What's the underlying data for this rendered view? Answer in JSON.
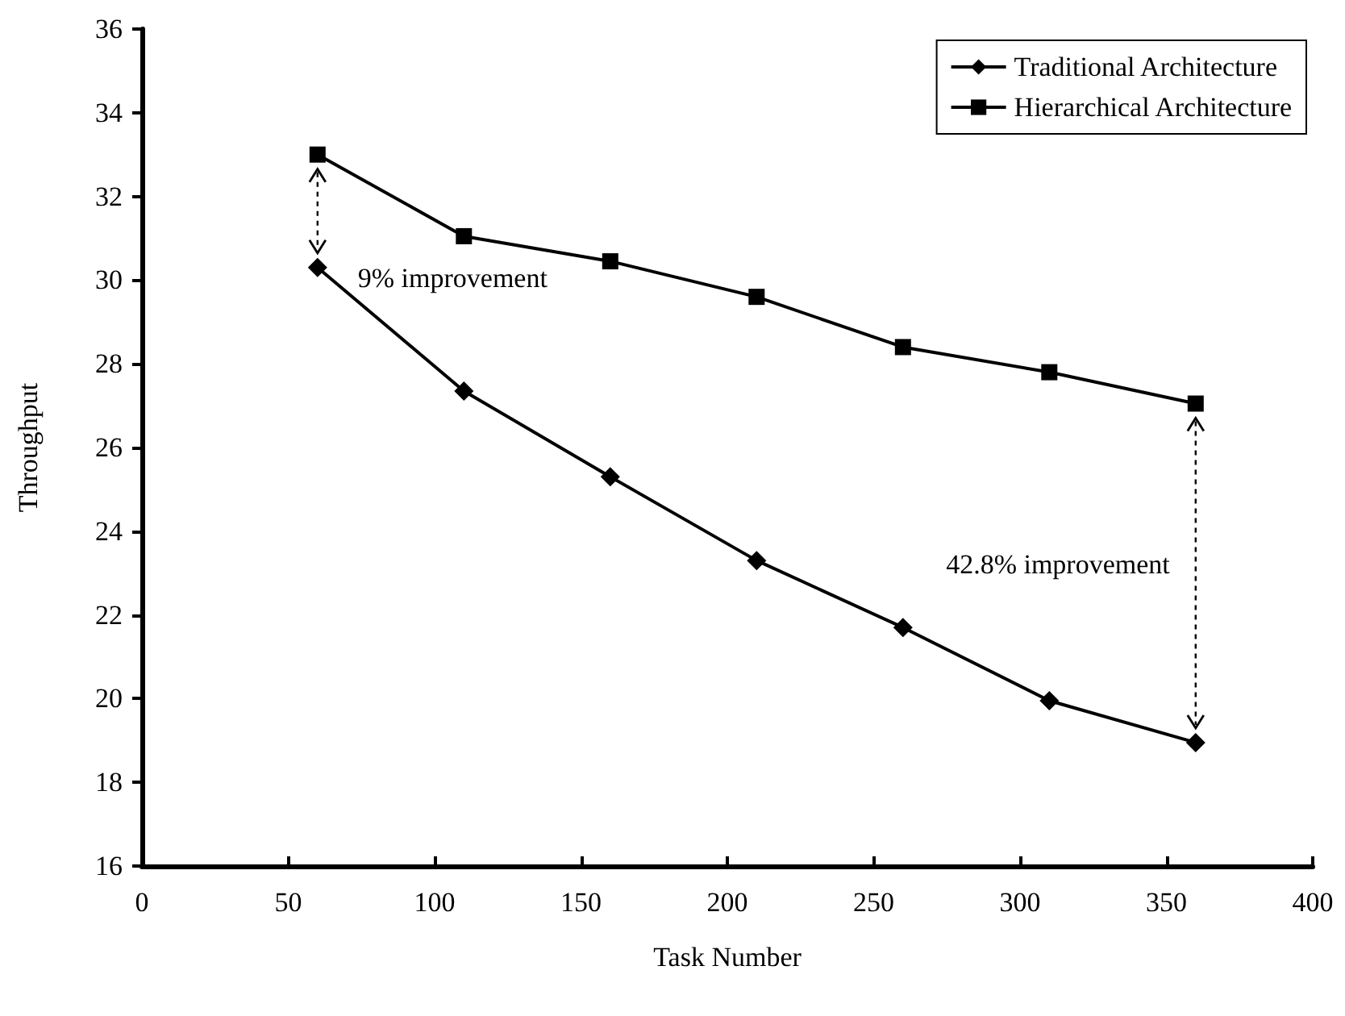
{
  "chart_data": {
    "type": "line",
    "xlabel": "Task Number",
    "ylabel": "Throughput",
    "x": [
      60,
      110,
      160,
      210,
      260,
      310,
      360
    ],
    "series": [
      {
        "name": "Traditional Architecture",
        "color": "#000000",
        "marker": "diamond",
        "values": [
          30.3,
          27.35,
          25.3,
          23.3,
          21.7,
          19.95,
          18.95
        ]
      },
      {
        "name": "Hierarchical Architecture",
        "color": "#000000",
        "marker": "square",
        "values": [
          33.0,
          31.05,
          30.45,
          29.6,
          28.4,
          27.8,
          27.05
        ]
      }
    ],
    "xlim": [
      0,
      400
    ],
    "xticks": [
      0,
      50,
      100,
      150,
      200,
      250,
      300,
      350,
      400
    ],
    "ylim": [
      16,
      36
    ],
    "yticks": [
      16,
      18,
      20,
      22,
      24,
      26,
      28,
      30,
      32,
      34,
      36
    ],
    "grid": false,
    "legend": "top right",
    "annotations": [
      "9% improvement",
      "42.8% improvement"
    ]
  }
}
